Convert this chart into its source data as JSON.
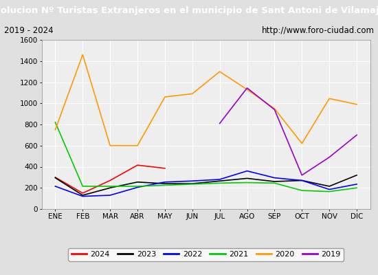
{
  "title": "Evolucion Nº Turistas Extranjeros en el municipio de Sant Antoni de Vilamajor",
  "subtitle_left": "2019 - 2024",
  "subtitle_right": "http://www.foro-ciudad.com",
  "x_labels": [
    "ENE",
    "FEB",
    "MAR",
    "ABR",
    "MAY",
    "JUN",
    "JUL",
    "AGO",
    "SEP",
    "OCT",
    "NOV",
    "DIC"
  ],
  "ylim": [
    0,
    1600
  ],
  "yticks": [
    0,
    200,
    400,
    600,
    800,
    1000,
    1200,
    1400,
    1600
  ],
  "series": {
    "2024": {
      "color": "#ff0000",
      "data": [
        300,
        150,
        270,
        415,
        385,
        null,
        null,
        null,
        null,
        null,
        null,
        null
      ]
    },
    "2023": {
      "color": "#000000",
      "data": [
        295,
        130,
        200,
        255,
        240,
        240,
        265,
        290,
        260,
        270,
        215,
        320
      ]
    },
    "2022": {
      "color": "#0000ff",
      "data": [
        215,
        120,
        130,
        205,
        255,
        265,
        280,
        360,
        295,
        270,
        185,
        235
      ]
    },
    "2021": {
      "color": "#00cc00",
      "data": [
        820,
        215,
        215,
        215,
        225,
        235,
        245,
        250,
        245,
        175,
        165,
        200
      ]
    },
    "2020": {
      "color": "#ff9900",
      "data": [
        750,
        1460,
        600,
        600,
        1060,
        1090,
        1300,
        1130,
        950,
        620,
        1045,
        990
      ]
    },
    "2019": {
      "color": "#9900cc",
      "data": [
        null,
        null,
        null,
        null,
        null,
        null,
        810,
        1145,
        940,
        320,
        490,
        700
      ]
    }
  },
  "title_bg": "#4d9be6",
  "title_color": "#ffffff",
  "subtitle_bg": "#e0e0e0",
  "plot_bg": "#eeeeee",
  "grid_color": "#ffffff",
  "legend_order": [
    "2024",
    "2023",
    "2022",
    "2021",
    "2020",
    "2019"
  ],
  "title_fontsize": 9.5,
  "subtitle_fontsize": 8.5,
  "tick_fontsize": 7.5,
  "legend_fontsize": 8
}
